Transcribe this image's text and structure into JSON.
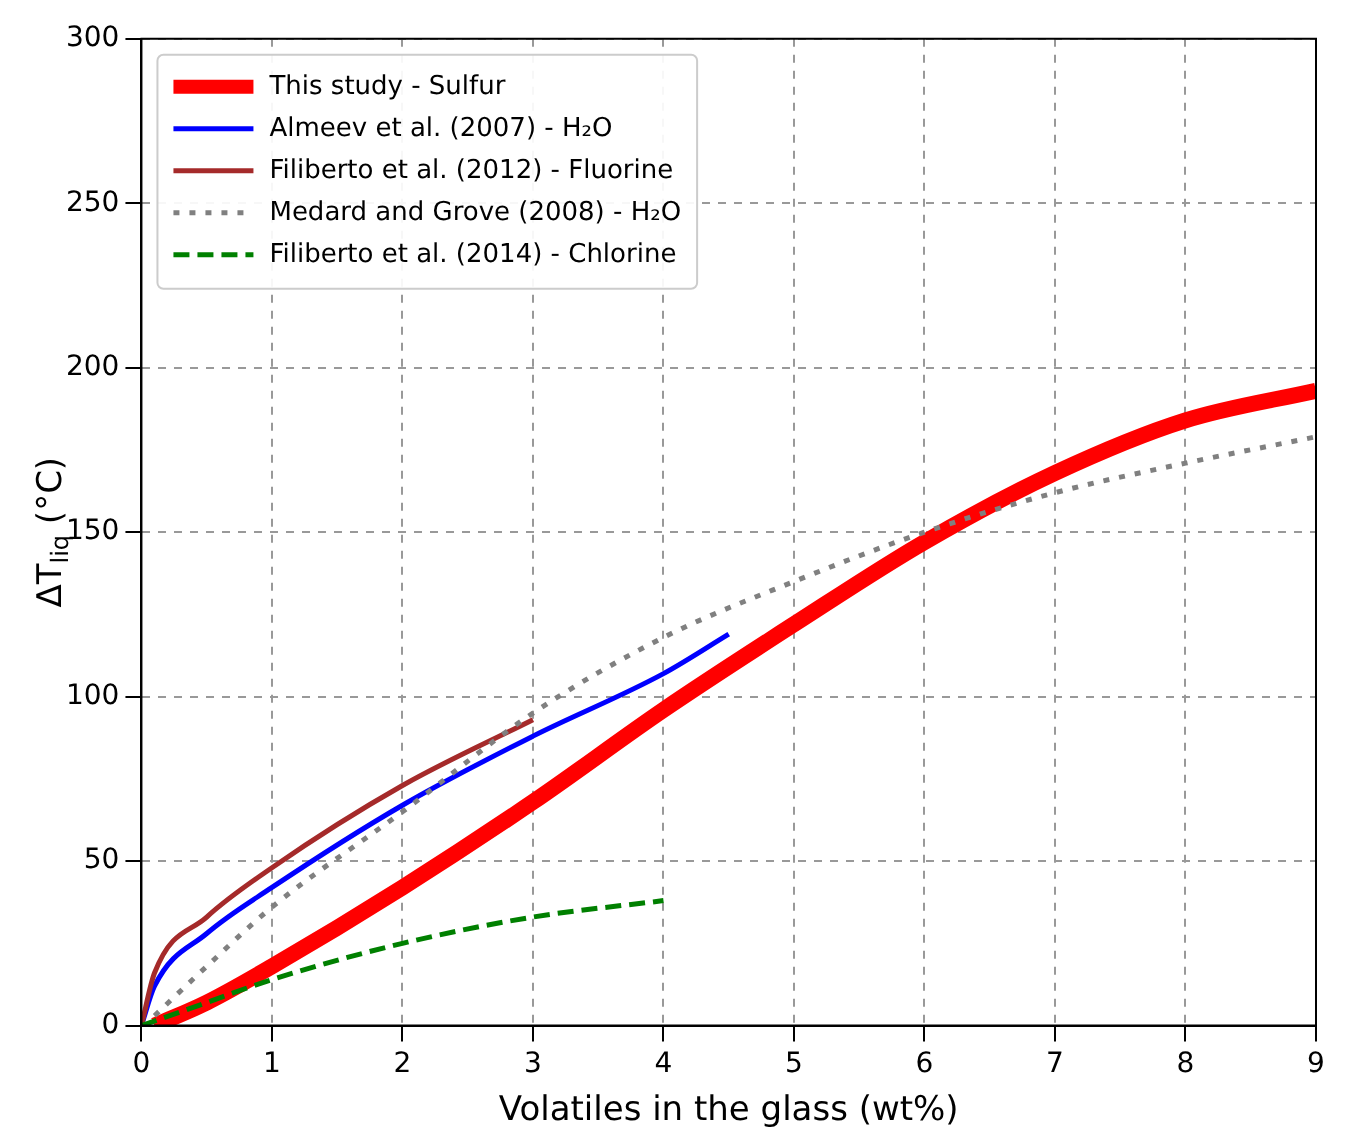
{
  "chart_data": {
    "type": "line",
    "xlabel": "Volatiles in the glass (wt%)",
    "ylabel": "ΔT$_{liq}$ (°C)",
    "xlim": [
      0,
      9
    ],
    "ylim": [
      0,
      300
    ],
    "xticks": [
      0,
      1,
      2,
      3,
      4,
      5,
      6,
      7,
      8,
      9
    ],
    "yticks": [
      0,
      50,
      100,
      150,
      200,
      250,
      300
    ],
    "grid": true,
    "legend": "top left",
    "marker": "none",
    "series": [
      {
        "name": "This study - Sulfur",
        "color": "#ff0000",
        "line_style": "solid",
        "x": [
          0.1,
          0.5,
          1,
          2,
          3,
          4,
          5,
          6,
          7,
          8,
          9
        ],
        "values": [
          0,
          7,
          18,
          42,
          68,
          96,
          122,
          147,
          168,
          184,
          193
        ]
      },
      {
        "name": "Almeev et al. (2007) - H₂O",
        "color": "#0000ff",
        "line_style": "solid",
        "x": [
          0,
          0.1,
          0.5,
          1,
          2,
          3,
          4,
          4.5
        ],
        "values": [
          0,
          12,
          28,
          42,
          67,
          88,
          107,
          119
        ]
      },
      {
        "name": "Filiberto et al. (2012) - Fluorine",
        "color": "#a52a2a",
        "line_style": "solid",
        "x": [
          0,
          0.1,
          0.5,
          1,
          2,
          3
        ],
        "values": [
          0,
          16,
          33,
          48,
          73,
          93
        ]
      },
      {
        "name": "Medard and Grove (2008) - H₂O",
        "color": "#808080",
        "line_style": "dotted",
        "x": [
          0.1,
          0.5,
          1,
          2,
          3,
          4,
          5,
          6,
          7,
          8,
          9
        ],
        "values": [
          3,
          18,
          36,
          65,
          95,
          118,
          135,
          150,
          162,
          171,
          179
        ]
      },
      {
        "name": "Filiberto et al. (2014) - Chlorine",
        "color": "#008000",
        "line_style": "dashed",
        "x": [
          0,
          0.5,
          1,
          2,
          3,
          4
        ],
        "values": [
          0,
          7,
          14,
          25,
          33,
          38
        ]
      }
    ]
  }
}
